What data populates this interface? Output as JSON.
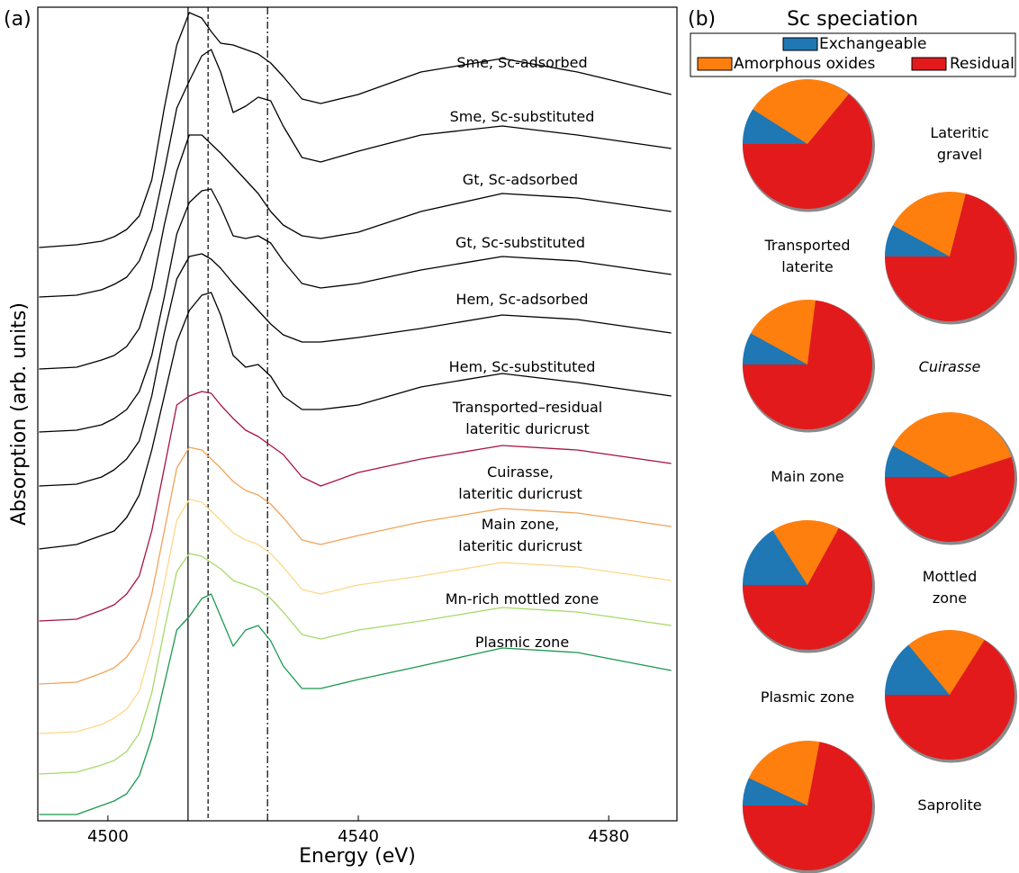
{
  "panel_labels": [
    "(a)",
    "(b)"
  ],
  "chart_data": [
    {
      "type": "line",
      "xlabel": "Energy (eV)",
      "ylabel": "Absorption (arb. units)",
      "xlim": [
        4488.8,
        4590.9
      ],
      "xticks": [
        4500,
        4540,
        4580
      ],
      "ylim": [
        0,
        9.04
      ],
      "reference_lines": [
        4512.8,
        4516.0,
        4525.5
      ],
      "reference_line_styles": [
        "solid",
        "dashed",
        "dashdot"
      ],
      "x": [
        4489,
        4495,
        4499,
        4501,
        4503,
        4505,
        4507,
        4509,
        4511,
        4513,
        4515,
        4516.5,
        4518,
        4520,
        4522,
        4524,
        4526,
        4528,
        4531,
        4534,
        4540,
        4550,
        4563,
        4575,
        4590
      ],
      "series": [
        {
          "name": "Sme, Sc-adsorbed",
          "color": "#000000",
          "values": [
            6.37,
            6.4,
            6.44,
            6.49,
            6.57,
            6.72,
            7.12,
            7.92,
            8.62,
            8.98,
            8.92,
            8.77,
            8.64,
            8.62,
            8.57,
            8.52,
            8.42,
            8.27,
            8.02,
            7.97,
            8.07,
            8.32,
            8.47,
            8.32,
            8.07
          ]
        },
        {
          "name": "Sme, Sc-substituted",
          "color": "#000000",
          "values": [
            5.82,
            5.84,
            5.9,
            5.96,
            6.04,
            6.22,
            6.57,
            7.22,
            7.92,
            8.22,
            8.5,
            8.57,
            8.32,
            7.87,
            7.94,
            8.04,
            8.0,
            7.72,
            7.37,
            7.32,
            7.44,
            7.62,
            7.72,
            7.62,
            7.47
          ]
        },
        {
          "name": "Gt, Sc-adsorbed",
          "color": "#000000",
          "values": [
            5.02,
            5.04,
            5.12,
            5.17,
            5.27,
            5.47,
            5.92,
            6.62,
            7.22,
            7.62,
            7.62,
            7.52,
            7.42,
            7.27,
            7.12,
            6.97,
            6.77,
            6.62,
            6.5,
            6.47,
            6.54,
            6.77,
            6.97,
            6.92,
            6.77
          ]
        },
        {
          "name": "Gt, Sc-substituted",
          "color": "#000000",
          "values": [
            4.32,
            4.34,
            4.4,
            4.47,
            4.57,
            4.77,
            5.17,
            5.82,
            6.52,
            6.87,
            7.0,
            7.02,
            6.82,
            6.5,
            6.47,
            6.5,
            6.42,
            6.22,
            5.97,
            5.92,
            5.97,
            6.12,
            6.27,
            6.22,
            6.07
          ]
        },
        {
          "name": "Hem, Sc-adsorbed",
          "color": "#000000",
          "values": [
            3.72,
            3.74,
            3.82,
            3.9,
            4.02,
            4.22,
            4.72,
            5.42,
            6.02,
            6.27,
            6.3,
            6.24,
            6.14,
            5.97,
            5.82,
            5.67,
            5.52,
            5.4,
            5.32,
            5.32,
            5.37,
            5.47,
            5.62,
            5.57,
            5.42
          ]
        },
        {
          "name": "Hem, Sc-substituted",
          "color": "#000000",
          "values": [
            3.02,
            3.07,
            3.17,
            3.22,
            3.37,
            3.62,
            4.12,
            4.72,
            5.32,
            5.67,
            5.84,
            5.87,
            5.62,
            5.17,
            5.04,
            5.07,
            4.94,
            4.72,
            4.57,
            4.57,
            4.62,
            4.82,
            4.97,
            4.87,
            4.72
          ]
        },
        {
          "name": "Transported–residual\nlateritic duricrust",
          "color": "#a8123e",
          "values": [
            2.22,
            2.24,
            2.34,
            2.4,
            2.52,
            2.72,
            3.22,
            3.92,
            4.62,
            4.72,
            4.77,
            4.75,
            4.62,
            4.47,
            4.34,
            4.27,
            4.17,
            4.07,
            3.82,
            3.72,
            3.87,
            4.02,
            4.17,
            4.12,
            3.97
          ]
        },
        {
          "name": "Cuirasse,\nlateritic duricrust",
          "color": "#f1a35a",
          "values": [
            1.52,
            1.54,
            1.64,
            1.7,
            1.82,
            2.02,
            2.52,
            3.22,
            3.92,
            4.15,
            4.12,
            4.02,
            3.92,
            3.77,
            3.67,
            3.62,
            3.52,
            3.37,
            3.12,
            3.07,
            3.17,
            3.32,
            3.47,
            3.42,
            3.27
          ]
        },
        {
          "name": "Main zone,\nlateritic duricrust",
          "color": "#fdd88a",
          "values": [
            0.97,
            0.99,
            1.07,
            1.14,
            1.24,
            1.44,
            1.94,
            2.64,
            3.34,
            3.57,
            3.54,
            3.44,
            3.34,
            3.2,
            3.12,
            3.07,
            2.97,
            2.82,
            2.57,
            2.52,
            2.62,
            2.72,
            2.87,
            2.82,
            2.67
          ]
        },
        {
          "name": "Mn-rich mottled zone",
          "color": "#a6d96a",
          "values": [
            0.52,
            0.54,
            0.62,
            0.67,
            0.77,
            0.97,
            1.42,
            2.12,
            2.77,
            2.97,
            2.94,
            2.87,
            2.8,
            2.67,
            2.62,
            2.57,
            2.47,
            2.32,
            2.07,
            2.02,
            2.12,
            2.22,
            2.37,
            2.32,
            2.17
          ]
        },
        {
          "name": "Plasmic zone",
          "color": "#1a9850",
          "values": [
            0.07,
            0.07,
            0.17,
            0.22,
            0.3,
            0.5,
            0.92,
            1.52,
            2.12,
            2.27,
            2.47,
            2.52,
            2.27,
            1.94,
            2.12,
            2.17,
            2.0,
            1.72,
            1.47,
            1.47,
            1.57,
            1.72,
            1.92,
            1.87,
            1.67
          ]
        }
      ]
    },
    {
      "type": "pie",
      "title": "Sc speciation",
      "categories": [
        "Exchangeable",
        "Amorphous oxides",
        "Residual"
      ],
      "colors": [
        "#1f77b4",
        "#ff7f0e",
        "#e31a1c"
      ],
      "start_angle": 180,
      "clockwise": true,
      "pies": [
        {
          "name": "Lateritic gravel",
          "values": [
            9,
            27,
            64
          ]
        },
        {
          "name": "Transported\nlaterite",
          "values": [
            8,
            21,
            71
          ]
        },
        {
          "name": "Cuirasse",
          "values": [
            8,
            19,
            73
          ]
        },
        {
          "name": "Main zone",
          "values": [
            8,
            37,
            55
          ]
        },
        {
          "name": "Mottled zone",
          "values": [
            16,
            17,
            67
          ]
        },
        {
          "name": "Plasmic zone",
          "values": [
            14,
            20,
            66
          ]
        },
        {
          "name": "Saprolite",
          "values": [
            7,
            21,
            72
          ]
        }
      ]
    }
  ]
}
